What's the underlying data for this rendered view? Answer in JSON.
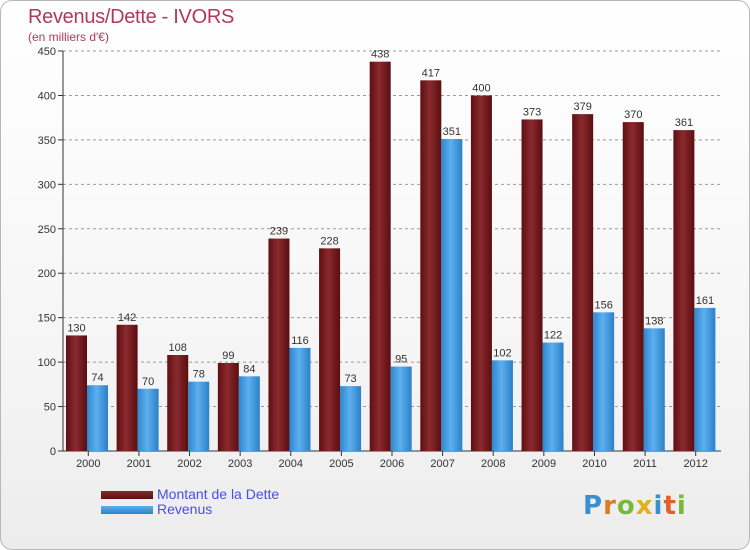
{
  "title": "Revenus/Dette - IVORS",
  "subtitle": "(en milliers d'€)",
  "legend": {
    "debt_label": "Montant de la Dette",
    "revenue_label": "Revenus"
  },
  "logo": {
    "letters": [
      "P",
      "r",
      "o",
      "x",
      "i",
      "t",
      "i"
    ],
    "colors": [
      "#3a8fd0",
      "#e07a1f",
      "#7bb83a",
      "#e0b020",
      "#3a8fd0",
      "#e0602a",
      "#7bb83a"
    ]
  },
  "colors": {
    "debt": "#7a1a1e",
    "revenue": "#3f9be0",
    "grid": "#9a9a9a",
    "axis": "#333333"
  },
  "chart_data": {
    "type": "bar",
    "title": "Revenus/Dette - IVORS",
    "ylabel": "(en milliers d'€)",
    "xlabel": "",
    "ylim": [
      0,
      450
    ],
    "yticks": [
      0,
      50,
      100,
      150,
      200,
      250,
      300,
      350,
      400,
      450
    ],
    "grid": true,
    "legend_position": "bottom-left",
    "categories": [
      "2000",
      "2001",
      "2002",
      "2003",
      "2004",
      "2005",
      "2006",
      "2007",
      "2008",
      "2009",
      "2010",
      "2011",
      "2012"
    ],
    "series": [
      {
        "name": "Montant de la Dette",
        "values": [
          130,
          142,
          108,
          99,
          239,
          228,
          438,
          417,
          400,
          373,
          379,
          370,
          361
        ]
      },
      {
        "name": "Revenus",
        "values": [
          74,
          70,
          78,
          84,
          116,
          73,
          95,
          351,
          102,
          122,
          156,
          138,
          161
        ]
      }
    ]
  }
}
